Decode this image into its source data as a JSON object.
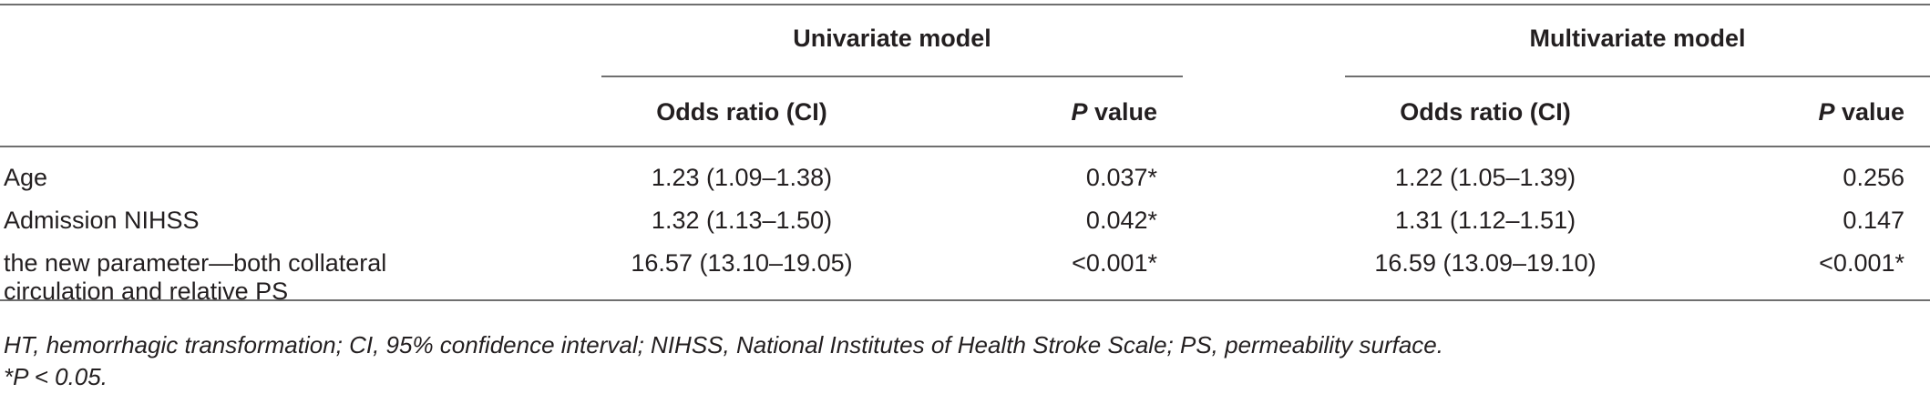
{
  "table": {
    "groups": [
      "Univariate model",
      "Multivariate model"
    ],
    "subheaders": {
      "or_label": "Odds ratio (CI)",
      "p_letter": "P",
      "p_suffix": " value"
    },
    "rows": [
      {
        "label": "Age",
        "uni_or": "1.23 (1.09–1.38)",
        "uni_p": "0.037*",
        "multi_or": "1.22 (1.05–1.39)",
        "multi_p": "0.256"
      },
      {
        "label": "Admission NIHSS",
        "uni_or": "1.32 (1.13–1.50)",
        "uni_p": "0.042*",
        "multi_or": "1.31 (1.12–1.51)",
        "multi_p": "0.147"
      },
      {
        "label_line1": "the new parameter—both collateral",
        "label_line2": "circulation and relative PS",
        "uni_or": "16.57 (13.10–19.05)",
        "uni_p": "<0.001*",
        "multi_or": "16.59 (13.09–19.10)",
        "multi_p": "<0.001*"
      }
    ]
  },
  "footnotes": {
    "abbreviations": "HT, hemorrhagic transformation; CI, 95% confidence interval; NIHSS, National Institutes of Health Stroke Scale; PS, permeability surface.",
    "significance": "*P < 0.05."
  }
}
